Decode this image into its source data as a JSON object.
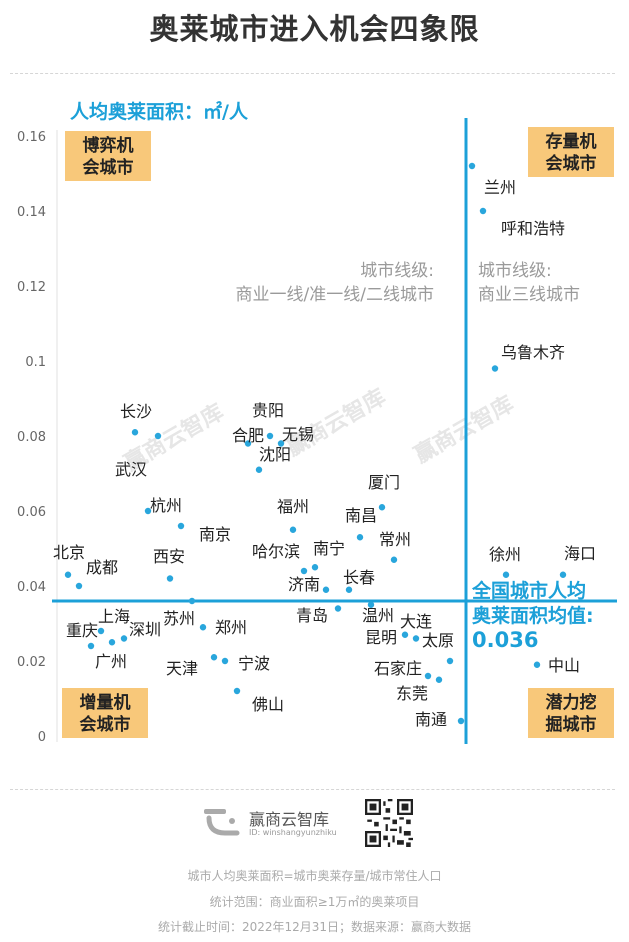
{
  "title": "奥莱城市进入机会四象限",
  "chart_data": {
    "type": "scatter",
    "ylabel": "人均奥莱面积：㎡/人",
    "ylim": [
      0,
      0.16
    ],
    "yticks": [
      "0",
      "0.02",
      "0.04",
      "0.06",
      "0.08",
      "0.1",
      "0.12",
      "0.14",
      "0.16"
    ],
    "ytick_values": [
      0,
      0.02,
      0.04,
      0.06,
      0.08,
      0.1,
      0.12,
      0.14,
      0.16
    ],
    "average_line": {
      "value": 0.036,
      "label_lines": [
        "全国城市人均",
        "奥莱面积均值:",
        "0.036"
      ]
    },
    "tier_labels": {
      "left": [
        "城市线级:",
        "商业一线/准一线/二线城市"
      ],
      "right": [
        "城市线级:",
        "商业三线城市"
      ]
    },
    "quadrants": {
      "top_left": [
        "博弈机",
        "会城市"
      ],
      "top_right": [
        "存量机",
        "会城市"
      ],
      "bottom_left": [
        "增量机",
        "会城市"
      ],
      "bottom_right": [
        "潜力挖",
        "掘城市"
      ]
    },
    "points": [
      {
        "name": "长沙",
        "y": 0.081,
        "group": "left"
      },
      {
        "name": "武汉",
        "y": 0.08,
        "group": "left"
      },
      {
        "name": "贵阳",
        "y": 0.08,
        "group": "left"
      },
      {
        "name": "合肥",
        "y": 0.078,
        "group": "left"
      },
      {
        "name": "无锡",
        "y": 0.078,
        "group": "left"
      },
      {
        "name": "沈阳",
        "y": 0.071,
        "group": "left"
      },
      {
        "name": "杭州",
        "y": 0.06,
        "group": "left"
      },
      {
        "name": "南京",
        "y": 0.056,
        "group": "left"
      },
      {
        "name": "福州",
        "y": 0.055,
        "group": "left"
      },
      {
        "name": "厦门",
        "y": 0.061,
        "group": "left"
      },
      {
        "name": "南昌",
        "y": 0.053,
        "group": "left"
      },
      {
        "name": "常州",
        "y": 0.047,
        "group": "left"
      },
      {
        "name": "哈尔滨",
        "y": 0.044,
        "group": "left"
      },
      {
        "name": "南宁",
        "y": 0.045,
        "group": "left"
      },
      {
        "name": "西安",
        "y": 0.042,
        "group": "left"
      },
      {
        "name": "北京",
        "y": 0.043,
        "group": "left"
      },
      {
        "name": "成都",
        "y": 0.04,
        "group": "left"
      },
      {
        "name": "济南",
        "y": 0.039,
        "group": "left"
      },
      {
        "name": "长春",
        "y": 0.039,
        "group": "left"
      },
      {
        "name": "苏州",
        "y": 0.036,
        "group": "left"
      },
      {
        "name": "青岛",
        "y": 0.034,
        "group": "left"
      },
      {
        "name": "温州",
        "y": 0.035,
        "group": "left"
      },
      {
        "name": "上海",
        "y": 0.028,
        "group": "left"
      },
      {
        "name": "深圳",
        "y": 0.026,
        "group": "left"
      },
      {
        "name": "重庆",
        "y": 0.024,
        "group": "left"
      },
      {
        "name": "广州",
        "y": 0.025,
        "group": "left"
      },
      {
        "name": "郑州",
        "y": 0.029,
        "group": "left"
      },
      {
        "name": "天津",
        "y": 0.021,
        "group": "left"
      },
      {
        "name": "宁波",
        "y": 0.02,
        "group": "left"
      },
      {
        "name": "佛山",
        "y": 0.012,
        "group": "left"
      },
      {
        "name": "大连",
        "y": 0.027,
        "group": "left"
      },
      {
        "name": "昆明",
        "y": 0.026,
        "group": "left"
      },
      {
        "name": "太原",
        "y": 0.02,
        "group": "left"
      },
      {
        "name": "石家庄",
        "y": 0.016,
        "group": "left"
      },
      {
        "name": "东莞",
        "y": 0.015,
        "group": "left"
      },
      {
        "name": "南通",
        "y": 0.004,
        "group": "left"
      },
      {
        "name": "兰州",
        "y": 0.152,
        "group": "right"
      },
      {
        "name": "呼和浩特",
        "y": 0.14,
        "group": "right"
      },
      {
        "name": "乌鲁木齐",
        "y": 0.098,
        "group": "right"
      },
      {
        "name": "徐州",
        "y": 0.043,
        "group": "right"
      },
      {
        "name": "海口",
        "y": 0.043,
        "group": "right"
      },
      {
        "name": "中山",
        "y": 0.019,
        "group": "right"
      }
    ]
  },
  "brand": {
    "name": "赢商云智库",
    "id": "ID: winshangyunzhiku"
  },
  "watermark": "赢商云智库",
  "footer": [
    "城市人均奥莱面积=城市奥莱存量/城市常住人口",
    "统计范围：商业面积≥1万㎡的奥莱项目",
    "统计截止时间：2022年12月31日；数据来源：赢商大数据"
  ],
  "colors": {
    "accent": "#1ca0d8",
    "quadrant_bg": "#f8c87a",
    "dot": "#29a6dc",
    "title": "#333333"
  }
}
